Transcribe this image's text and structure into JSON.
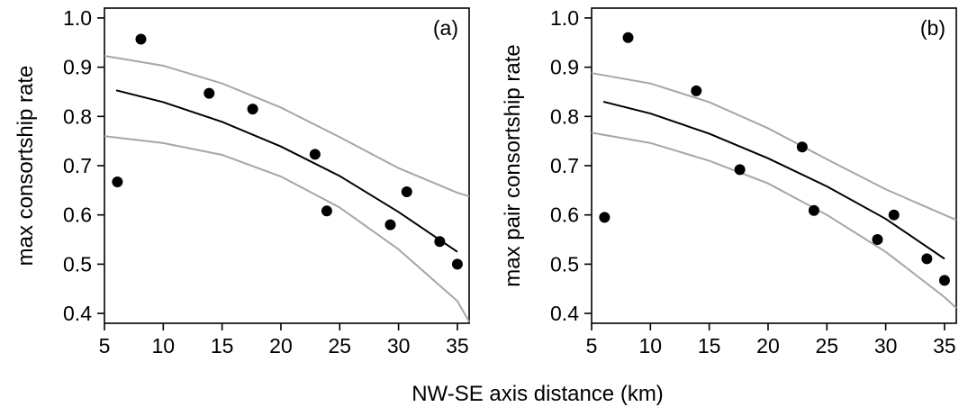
{
  "chart_data": [
    {
      "type": "scatter",
      "panel_label": "(a)",
      "ylabel": "max consortship rate",
      "xlim": [
        5,
        36
      ],
      "ylim": [
        0.38,
        1.02
      ],
      "xticks": [
        "5",
        "10",
        "15",
        "20",
        "25",
        "30",
        "35"
      ],
      "yticks": [
        "0.4",
        "0.5",
        "0.6",
        "0.7",
        "0.8",
        "0.9",
        "1.0"
      ],
      "points": {
        "x": [
          6.1,
          8.1,
          13.9,
          17.6,
          22.9,
          23.9,
          29.3,
          30.7,
          33.5,
          35.0
        ],
        "y": [
          0.667,
          0.957,
          0.847,
          0.815,
          0.723,
          0.608,
          0.58,
          0.647,
          0.546,
          0.5
        ]
      },
      "fit": {
        "x": [
          6,
          10,
          15,
          20,
          25,
          30,
          35
        ],
        "y": [
          0.853,
          0.829,
          0.789,
          0.739,
          0.679,
          0.606,
          0.525
        ]
      },
      "ci_upper": {
        "x": [
          5,
          10,
          15,
          20,
          25,
          30,
          35,
          36
        ],
        "y": [
          0.923,
          0.903,
          0.867,
          0.818,
          0.758,
          0.695,
          0.645,
          0.638
        ]
      },
      "ci_lower": {
        "x": [
          5,
          10,
          15,
          20,
          25,
          30,
          35,
          36
        ],
        "y": [
          0.76,
          0.746,
          0.722,
          0.678,
          0.615,
          0.53,
          0.425,
          0.383
        ]
      },
      "grid": false
    },
    {
      "type": "scatter",
      "panel_label": "(b)",
      "ylabel": "max pair consortship rate",
      "xlim": [
        5,
        36
      ],
      "ylim": [
        0.38,
        1.02
      ],
      "xticks": [
        "5",
        "10",
        "15",
        "20",
        "25",
        "30",
        "35"
      ],
      "yticks": [
        "0.4",
        "0.5",
        "0.6",
        "0.7",
        "0.8",
        "0.9",
        "1.0"
      ],
      "points": {
        "x": [
          6.1,
          8.1,
          13.9,
          17.6,
          22.9,
          23.9,
          29.3,
          30.7,
          33.5,
          35.0
        ],
        "y": [
          0.595,
          0.96,
          0.852,
          0.692,
          0.738,
          0.609,
          0.55,
          0.6,
          0.511,
          0.467
        ]
      },
      "fit": {
        "x": [
          6,
          10,
          15,
          20,
          25,
          30,
          35
        ],
        "y": [
          0.83,
          0.806,
          0.765,
          0.715,
          0.658,
          0.592,
          0.511
        ]
      },
      "ci_upper": {
        "x": [
          5,
          10,
          15,
          20,
          25,
          30,
          35,
          36
        ],
        "y": [
          0.888,
          0.867,
          0.829,
          0.776,
          0.713,
          0.652,
          0.6,
          0.59
        ]
      },
      "ci_lower": {
        "x": [
          5,
          10,
          15,
          20,
          25,
          30,
          35,
          36
        ],
        "y": [
          0.767,
          0.746,
          0.71,
          0.664,
          0.6,
          0.525,
          0.433,
          0.411
        ]
      },
      "grid": false
    }
  ],
  "shared": {
    "xlabel": "NW-SE axis distance (km)"
  },
  "colors": {
    "points": "#000000",
    "fit": "#000000",
    "ci": "#a6a6a6",
    "frame": "#000000"
  }
}
